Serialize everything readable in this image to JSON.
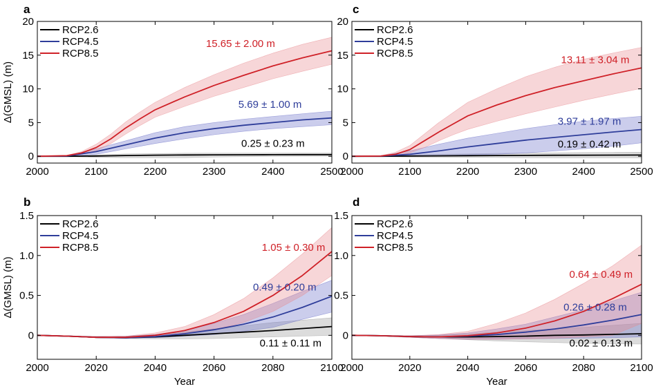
{
  "chart_data": [
    {
      "panel": "a",
      "type": "line",
      "ylabel": "Δ(GMSL) (m)",
      "xlabel": "",
      "xlim": [
        2000,
        2500
      ],
      "ylim": [
        -1,
        20
      ],
      "xticks": [
        2000,
        2100,
        2200,
        2300,
        2400,
        2500
      ],
      "yticks": [
        0,
        5,
        10,
        15,
        20
      ],
      "legend_position": "top-left",
      "series": [
        {
          "name": "RCP2.6",
          "color": "#000000",
          "band_color": "#9a9a9a",
          "x": [
            2000,
            2050,
            2100,
            2150,
            2200,
            2250,
            2300,
            2350,
            2400,
            2450,
            2500
          ],
          "y": [
            0,
            0,
            0.05,
            0.12,
            0.17,
            0.2,
            0.22,
            0.23,
            0.24,
            0.25,
            0.25
          ],
          "lower": [
            0,
            -0.05,
            -0.15,
            -0.2,
            -0.2,
            -0.2,
            -0.1,
            -0.05,
            0,
            0.01,
            0.02
          ],
          "upper": [
            0,
            0.05,
            0.2,
            0.35,
            0.4,
            0.45,
            0.46,
            0.47,
            0.48,
            0.48,
            0.48
          ]
        },
        {
          "name": "RCP4.5",
          "color": "#2e3d9a",
          "band_color": "#6a6fc8",
          "x": [
            2000,
            2050,
            2100,
            2125,
            2150,
            2175,
            2200,
            2250,
            2300,
            2350,
            2400,
            2450,
            2500
          ],
          "y": [
            0,
            0.05,
            0.7,
            1.2,
            1.7,
            2.2,
            2.7,
            3.5,
            4.1,
            4.6,
            5.0,
            5.4,
            5.69
          ],
          "lower": [
            0,
            0,
            0.3,
            0.7,
            1.1,
            1.5,
            1.9,
            2.6,
            3.2,
            3.7,
            4.1,
            4.4,
            4.69
          ],
          "upper": [
            0,
            0.1,
            1.1,
            1.7,
            2.3,
            2.9,
            3.5,
            4.4,
            5.0,
            5.5,
            5.9,
            6.3,
            6.69
          ]
        },
        {
          "name": "RCP8.5",
          "color": "#cf2027",
          "band_color": "#e88a8f",
          "x": [
            2000,
            2050,
            2075,
            2100,
            2125,
            2150,
            2175,
            2200,
            2250,
            2300,
            2350,
            2400,
            2450,
            2500
          ],
          "y": [
            0,
            0.1,
            0.5,
            1.3,
            2.6,
            4.2,
            5.6,
            6.9,
            8.8,
            10.5,
            12.0,
            13.4,
            14.6,
            15.65
          ],
          "lower": [
            0,
            0.05,
            0.3,
            0.8,
            1.9,
            3.3,
            4.6,
            5.8,
            7.4,
            8.9,
            10.2,
            11.5,
            12.6,
            13.65
          ],
          "upper": [
            0,
            0.15,
            0.7,
            1.8,
            3.3,
            5.1,
            6.6,
            8.0,
            10.2,
            12.1,
            13.8,
            15.3,
            16.6,
            17.65
          ]
        }
      ],
      "annotations": [
        {
          "text": "15.65 ± 2.00 m",
          "series": "RCP8.5",
          "x": 2345,
          "y": 16.2
        },
        {
          "text": "5.69 ± 1.00 m",
          "series": "RCP4.5",
          "x": 2395,
          "y": 7.2
        },
        {
          "text": "0.25 ± 0.23 m",
          "series": "RCP2.6",
          "x": 2400,
          "y": 1.4
        }
      ]
    },
    {
      "panel": "c",
      "type": "line",
      "ylabel": "",
      "xlabel": "",
      "xlim": [
        2000,
        2500
      ],
      "ylim": [
        -1,
        20
      ],
      "xticks": [
        2000,
        2100,
        2200,
        2300,
        2400,
        2500
      ],
      "yticks": [
        0,
        5,
        10,
        15,
        20
      ],
      "legend_position": "top-left",
      "series": [
        {
          "name": "RCP2.6",
          "color": "#000000",
          "band_color": "#9a9a9a",
          "x": [
            2000,
            2050,
            2100,
            2150,
            2200,
            2250,
            2300,
            2350,
            2400,
            2450,
            2500
          ],
          "y": [
            0,
            0,
            0.03,
            0.07,
            0.1,
            0.12,
            0.14,
            0.16,
            0.17,
            0.18,
            0.19
          ],
          "lower": [
            0,
            -0.05,
            -0.1,
            -0.12,
            -0.15,
            -0.18,
            -0.2,
            -0.21,
            -0.22,
            -0.23,
            -0.23
          ],
          "upper": [
            0,
            0.05,
            0.2,
            0.3,
            0.35,
            0.42,
            0.48,
            0.52,
            0.56,
            0.59,
            0.61
          ]
        },
        {
          "name": "RCP4.5",
          "color": "#2e3d9a",
          "band_color": "#6a6fc8",
          "x": [
            2000,
            2050,
            2100,
            2150,
            2200,
            2250,
            2300,
            2350,
            2400,
            2450,
            2500
          ],
          "y": [
            0,
            0.02,
            0.3,
            0.8,
            1.4,
            1.9,
            2.4,
            2.8,
            3.2,
            3.6,
            3.97
          ],
          "lower": [
            0,
            0,
            0.0,
            0.1,
            0.2,
            0.3,
            0.5,
            0.8,
            1.1,
            1.5,
            2.0
          ],
          "upper": [
            0,
            0.1,
            0.8,
            1.8,
            2.7,
            3.4,
            4.1,
            4.7,
            5.2,
            5.6,
            5.94
          ]
        },
        {
          "name": "RCP8.5",
          "color": "#cf2027",
          "band_color": "#e88a8f",
          "x": [
            2000,
            2050,
            2075,
            2100,
            2125,
            2150,
            2175,
            2200,
            2250,
            2300,
            2350,
            2400,
            2450,
            2500
          ],
          "y": [
            0,
            0.05,
            0.3,
            1.0,
            2.3,
            3.6,
            4.8,
            6.0,
            7.6,
            9.0,
            10.2,
            11.2,
            12.2,
            13.11
          ],
          "lower": [
            0,
            0,
            0.1,
            0.5,
            1.3,
            2.3,
            3.2,
            4.0,
            5.2,
            6.3,
            7.3,
            8.3,
            9.2,
            10.07
          ],
          "upper": [
            0,
            0.1,
            0.6,
            1.6,
            3.3,
            5.0,
            6.5,
            8.0,
            10.0,
            11.8,
            13.2,
            14.4,
            15.3,
            16.15
          ]
        }
      ],
      "annotations": [
        {
          "text": "13.11 ± 3.04 m",
          "series": "RCP8.5",
          "x": 2420,
          "y": 13.8
        },
        {
          "text": "3.97 ± 1.97 m",
          "series": "RCP4.5",
          "x": 2410,
          "y": 4.7
        },
        {
          "text": "0.19 ± 0.42 m",
          "series": "RCP2.6",
          "x": 2410,
          "y": 1.3
        }
      ]
    },
    {
      "panel": "b",
      "type": "line",
      "ylabel": "Δ(GMSL) (m)",
      "xlabel": "Year",
      "xlim": [
        2000,
        2100
      ],
      "ylim": [
        -0.3,
        1.5
      ],
      "xticks": [
        2000,
        2020,
        2040,
        2060,
        2080,
        2100
      ],
      "yticks": [
        0,
        0.5,
        1.0,
        1.5
      ],
      "ytick_labels": [
        "0",
        "0.5",
        "1.0",
        "1.5"
      ],
      "legend_position": "top-left",
      "series": [
        {
          "name": "RCP2.6",
          "color": "#000000",
          "band_color": "#9a9a9a",
          "x": [
            2000,
            2010,
            2020,
            2030,
            2040,
            2050,
            2060,
            2070,
            2080,
            2090,
            2100
          ],
          "y": [
            0,
            -0.01,
            -0.025,
            -0.03,
            -0.02,
            0,
            0.02,
            0.04,
            0.06,
            0.085,
            0.11
          ],
          "lower": [
            0,
            -0.01,
            -0.03,
            -0.04,
            -0.045,
            -0.045,
            -0.04,
            -0.03,
            -0.02,
            -0.01,
            0
          ],
          "upper": [
            0,
            -0.005,
            -0.015,
            -0.01,
            0.01,
            0.04,
            0.08,
            0.12,
            0.16,
            0.19,
            0.22
          ]
        },
        {
          "name": "RCP4.5",
          "color": "#2e3d9a",
          "band_color": "#6a6fc8",
          "x": [
            2000,
            2010,
            2020,
            2030,
            2040,
            2050,
            2060,
            2070,
            2080,
            2090,
            2100
          ],
          "y": [
            0,
            -0.01,
            -0.025,
            -0.03,
            -0.015,
            0.02,
            0.07,
            0.14,
            0.23,
            0.35,
            0.49
          ],
          "lower": [
            0,
            -0.01,
            -0.03,
            -0.035,
            -0.03,
            -0.01,
            0.01,
            0.05,
            0.1,
            0.2,
            0.29
          ],
          "upper": [
            0,
            -0.005,
            -0.015,
            -0.01,
            0.01,
            0.06,
            0.15,
            0.26,
            0.4,
            0.55,
            0.69
          ]
        },
        {
          "name": "RCP8.5",
          "color": "#cf2027",
          "band_color": "#e88a8f",
          "x": [
            2000,
            2010,
            2020,
            2030,
            2040,
            2050,
            2060,
            2070,
            2080,
            2090,
            2100
          ],
          "y": [
            0,
            -0.01,
            -0.025,
            -0.025,
            0,
            0.06,
            0.16,
            0.3,
            0.5,
            0.75,
            1.05
          ],
          "lower": [
            0,
            -0.01,
            -0.03,
            -0.035,
            -0.02,
            0.02,
            0.07,
            0.16,
            0.3,
            0.5,
            0.75
          ],
          "upper": [
            0,
            -0.005,
            -0.015,
            -0.01,
            0.03,
            0.11,
            0.26,
            0.46,
            0.72,
            1.02,
            1.35
          ]
        }
      ],
      "annotations": [
        {
          "text": "1.05 ± 0.30 m",
          "series": "RCP8.5",
          "x": 2087,
          "y": 1.06
        },
        {
          "text": "0.49 ± 0.20 m",
          "series": "RCP4.5",
          "x": 2084,
          "y": 0.56
        },
        {
          "text": "0.11 ± 0.11 m",
          "series": "RCP2.6",
          "x": 2086,
          "y": -0.14
        }
      ]
    },
    {
      "panel": "d",
      "type": "line",
      "ylabel": "",
      "xlabel": "Year",
      "xlim": [
        2000,
        2100
      ],
      "ylim": [
        -0.3,
        1.5
      ],
      "xticks": [
        2000,
        2020,
        2040,
        2060,
        2080,
        2100
      ],
      "yticks": [
        0,
        0.5,
        1.0,
        1.5
      ],
      "ytick_labels": [
        "0",
        "0.5",
        "1.0",
        "1.5"
      ],
      "legend_position": "top-left",
      "series": [
        {
          "name": "RCP2.6",
          "color": "#000000",
          "band_color": "#9a9a9a",
          "x": [
            2000,
            2010,
            2020,
            2030,
            2040,
            2050,
            2060,
            2070,
            2080,
            2090,
            2100
          ],
          "y": [
            0,
            -0.005,
            -0.015,
            -0.02,
            -0.02,
            -0.015,
            -0.01,
            0,
            0.005,
            0.012,
            0.02
          ],
          "lower": [
            0,
            -0.01,
            -0.025,
            -0.04,
            -0.055,
            -0.07,
            -0.08,
            -0.09,
            -0.1,
            -0.105,
            -0.11
          ],
          "upper": [
            0,
            0,
            -0.005,
            0,
            0.015,
            0.04,
            0.06,
            0.08,
            0.1,
            0.125,
            0.15
          ]
        },
        {
          "name": "RCP4.5",
          "color": "#2e3d9a",
          "band_color": "#6a6fc8",
          "x": [
            2000,
            2010,
            2020,
            2030,
            2040,
            2050,
            2060,
            2070,
            2080,
            2090,
            2100
          ],
          "y": [
            0,
            -0.005,
            -0.015,
            -0.02,
            -0.01,
            0.01,
            0.04,
            0.08,
            0.13,
            0.19,
            0.26
          ],
          "lower": [
            0,
            -0.01,
            -0.025,
            -0.04,
            -0.05,
            -0.05,
            -0.045,
            -0.04,
            -0.035,
            -0.03,
            -0.02
          ],
          "upper": [
            0,
            0,
            -0.005,
            0.005,
            0.03,
            0.08,
            0.14,
            0.23,
            0.32,
            0.43,
            0.54
          ]
        },
        {
          "name": "RCP8.5",
          "color": "#cf2027",
          "band_color": "#e88a8f",
          "x": [
            2000,
            2010,
            2020,
            2030,
            2040,
            2050,
            2060,
            2070,
            2080,
            2090,
            2100
          ],
          "y": [
            0,
            -0.005,
            -0.015,
            -0.02,
            -0.005,
            0.03,
            0.09,
            0.18,
            0.3,
            0.46,
            0.64
          ],
          "lower": [
            0,
            -0.01,
            -0.025,
            -0.04,
            -0.05,
            -0.05,
            -0.045,
            -0.035,
            -0.02,
            0.0,
            0.15
          ],
          "upper": [
            0,
            0,
            -0.005,
            0.01,
            0.05,
            0.15,
            0.28,
            0.45,
            0.65,
            0.87,
            1.13
          ]
        }
      ],
      "annotations": [
        {
          "text": "0.64 ± 0.49 m",
          "series": "RCP8.5",
          "x": 2086,
          "y": 0.72
        },
        {
          "text": "0.26 ± 0.28 m",
          "series": "RCP4.5",
          "x": 2084,
          "y": 0.31
        },
        {
          "text": "0.02 ± 0.13 m",
          "series": "RCP2.6",
          "x": 2086,
          "y": -0.14
        }
      ]
    }
  ]
}
